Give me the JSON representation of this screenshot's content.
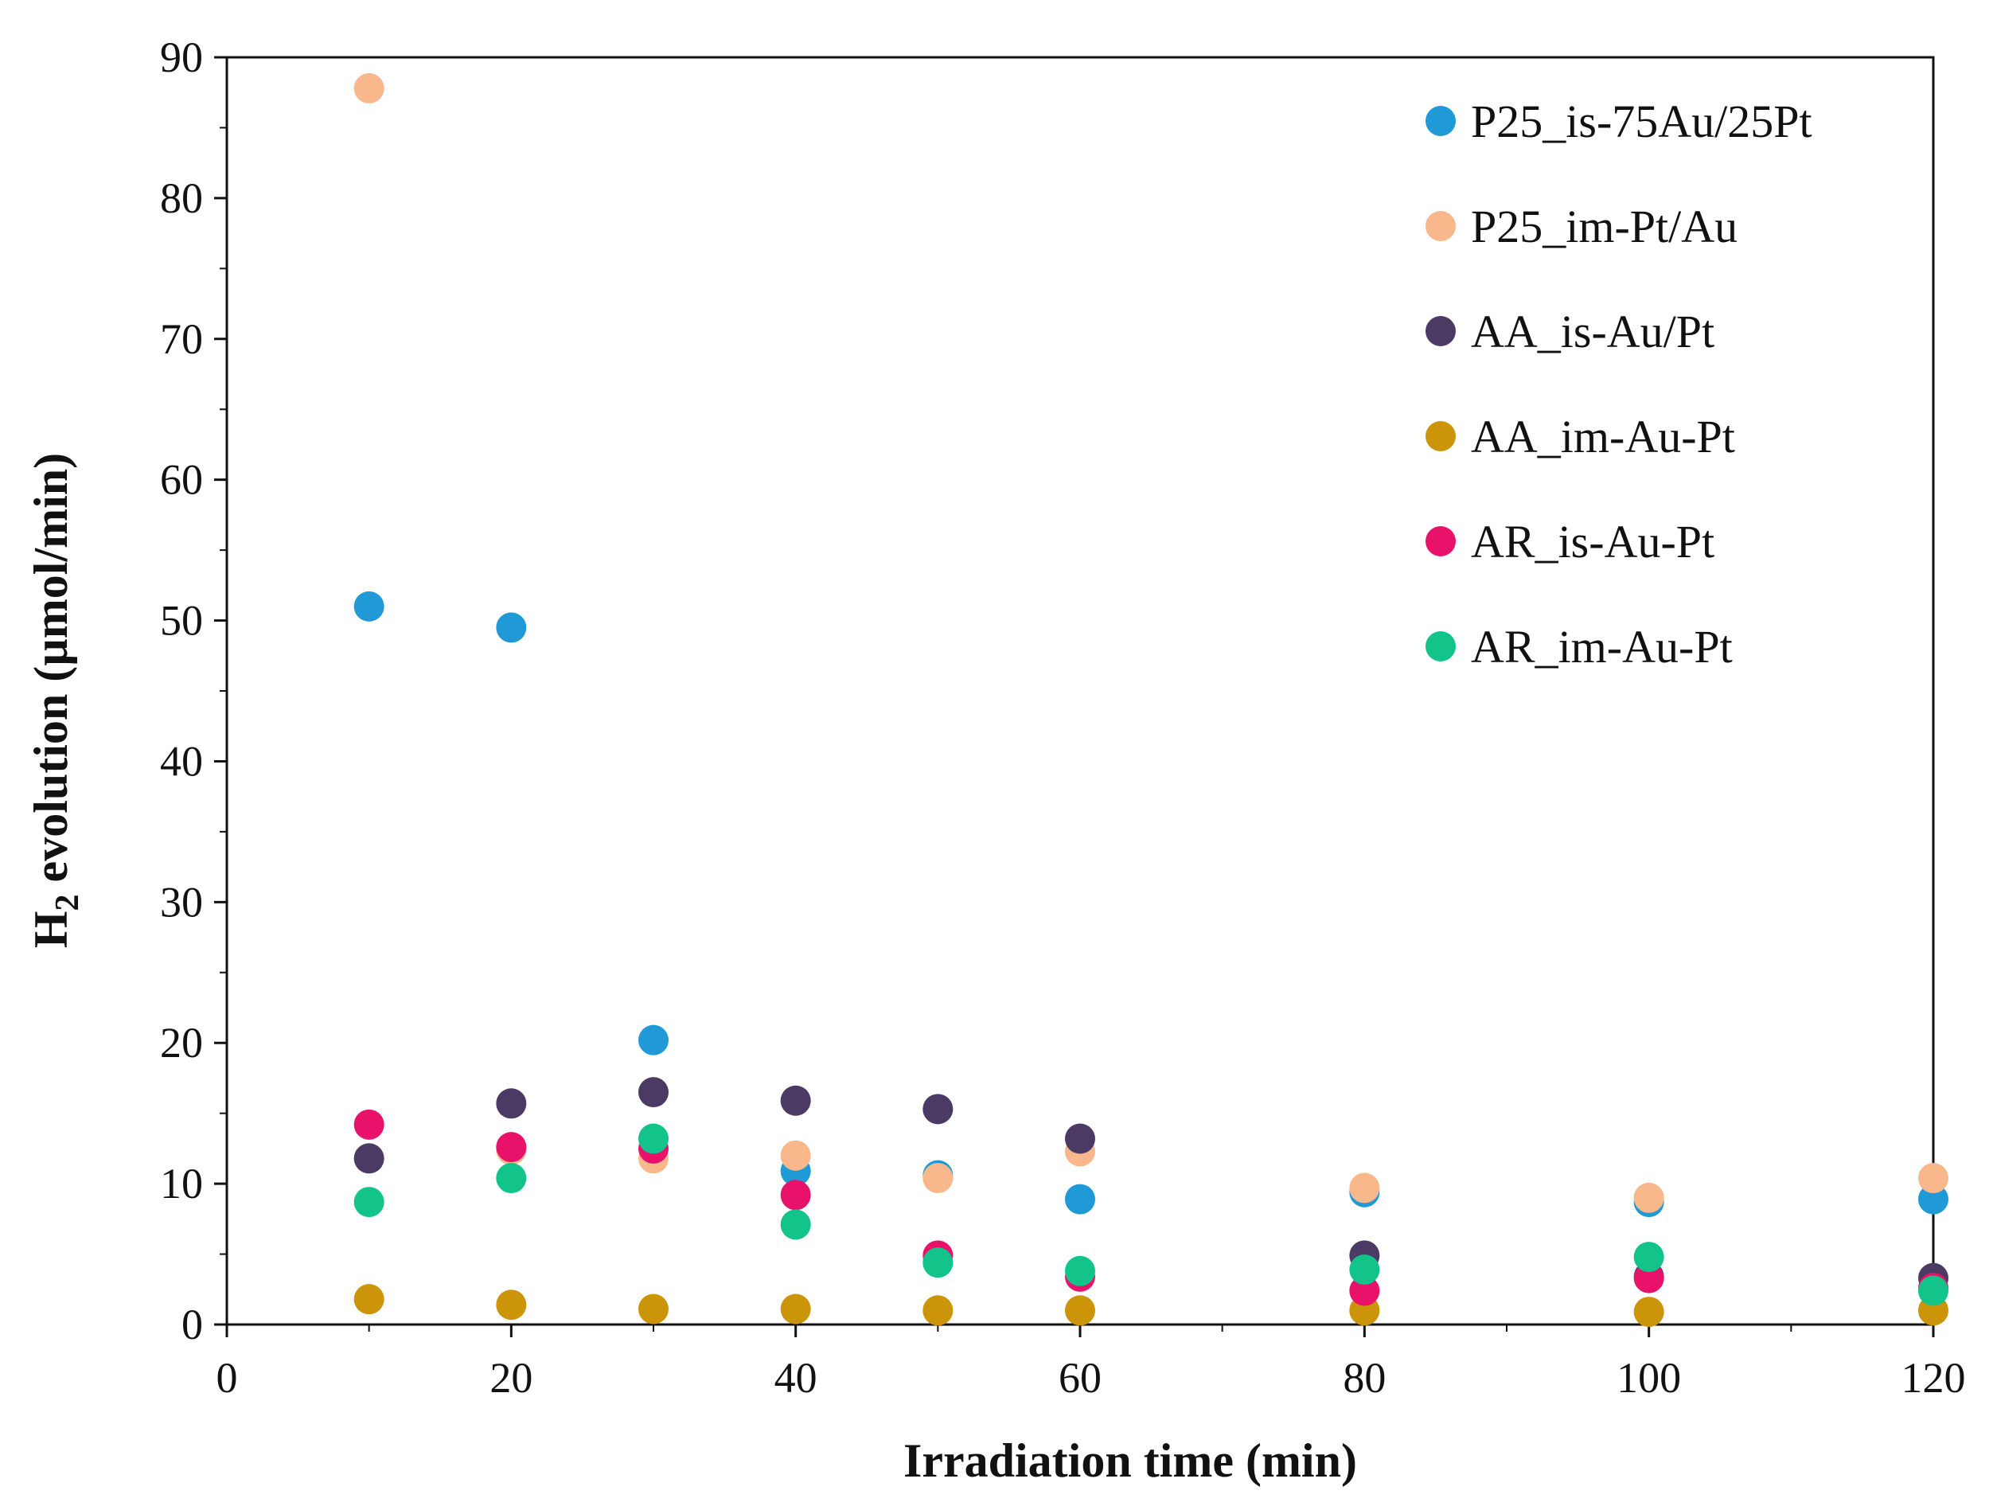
{
  "chart_data": {
    "type": "scatter",
    "title": "",
    "xlabel": "Irradiation time (min)",
    "ylabel_main": "H",
    "ylabel_sub": "2",
    "ylabel_rest": " evolution (µmol/min)",
    "xlim": [
      0,
      120
    ],
    "ylim": [
      0,
      90
    ],
    "xticks": [
      0,
      20,
      40,
      60,
      80,
      100,
      120
    ],
    "yticks": [
      0,
      10,
      20,
      30,
      40,
      50,
      60,
      70,
      80,
      90
    ],
    "grid": false,
    "legend_position": "top-right",
    "series": [
      {
        "name": "P25_is-75Au/25Pt",
        "color": "#1f9ad6",
        "x": [
          10,
          20,
          30,
          40,
          50,
          60,
          80,
          100,
          120
        ],
        "y": [
          51.0,
          49.5,
          20.2,
          10.9,
          10.6,
          8.9,
          9.4,
          8.7,
          8.9
        ]
      },
      {
        "name": "P25_im-Pt/Au",
        "color": "#f9b88c",
        "x": [
          10,
          20,
          30,
          40,
          50,
          60,
          80,
          100,
          120
        ],
        "y": [
          87.8,
          12.4,
          11.8,
          12.0,
          10.4,
          12.3,
          9.7,
          9.0,
          10.4
        ]
      },
      {
        "name": "AA_is-Au/Pt",
        "color": "#4b3a63",
        "x": [
          10,
          20,
          30,
          40,
          50,
          60,
          80,
          100,
          120
        ],
        "y": [
          11.8,
          15.7,
          16.5,
          15.9,
          15.3,
          13.2,
          4.9,
          3.4,
          3.3
        ]
      },
      {
        "name": "AA_im-Au-Pt",
        "color": "#cc9408",
        "x": [
          10,
          20,
          30,
          40,
          50,
          60,
          80,
          100,
          120
        ],
        "y": [
          1.8,
          1.4,
          1.1,
          1.1,
          1.0,
          1.0,
          1.0,
          0.9,
          1.0
        ]
      },
      {
        "name": "AR_is-Au-Pt",
        "color": "#e8126a",
        "x": [
          10,
          20,
          30,
          40,
          50,
          60,
          80,
          100,
          120
        ],
        "y": [
          14.2,
          12.6,
          12.5,
          9.2,
          4.9,
          3.4,
          2.4,
          3.3,
          2.6
        ]
      },
      {
        "name": "AR_im-Au-Pt",
        "color": "#12c48a",
        "x": [
          10,
          20,
          30,
          40,
          50,
          60,
          80,
          100,
          120
        ],
        "y": [
          8.7,
          10.4,
          13.2,
          7.1,
          4.4,
          3.8,
          3.9,
          4.8,
          2.4
        ]
      }
    ]
  }
}
